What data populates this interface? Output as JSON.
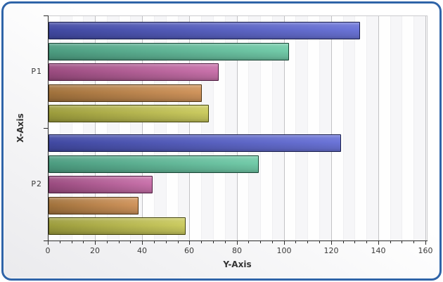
{
  "frame": {
    "border_color": "#2F64A8"
  },
  "chart_data": {
    "type": "bar",
    "orientation": "horizontal",
    "title": "",
    "xlabel": "Y-Axis",
    "ylabel": "X-Axis",
    "xlim": [
      0,
      160
    ],
    "x_major_tick_step": 20,
    "x_minor_tick_step": 5,
    "x_tick_labels": [
      "0",
      "20",
      "40",
      "60",
      "80",
      "100",
      "120",
      "140",
      "160"
    ],
    "grid": true,
    "grid_interlaced_stripes": true,
    "legend": false,
    "categories": [
      "P1",
      "P2"
    ],
    "series": [
      {
        "name": "series-1-blue",
        "color_dark": "#4149A2",
        "color_light": "#6B74D8",
        "border_color": "#191E4B",
        "values": [
          132,
          124
        ]
      },
      {
        "name": "series-2-teal",
        "color_dark": "#4C9C80",
        "color_light": "#72CBA9",
        "border_color": "#174434",
        "values": [
          102,
          89
        ]
      },
      {
        "name": "series-3-magenta",
        "color_dark": "#9A4B7F",
        "color_light": "#C972AB",
        "border_color": "#4E1C40",
        "values": [
          72,
          44
        ]
      },
      {
        "name": "series-4-orange",
        "color_dark": "#A1723C",
        "color_light": "#D0945C",
        "border_color": "#4F3413",
        "values": [
          65,
          38
        ]
      },
      {
        "name": "series-5-olive",
        "color_dark": "#9C9C3C",
        "color_light": "#CBCB60",
        "border_color": "#45450E",
        "values": [
          68,
          58
        ]
      }
    ]
  }
}
